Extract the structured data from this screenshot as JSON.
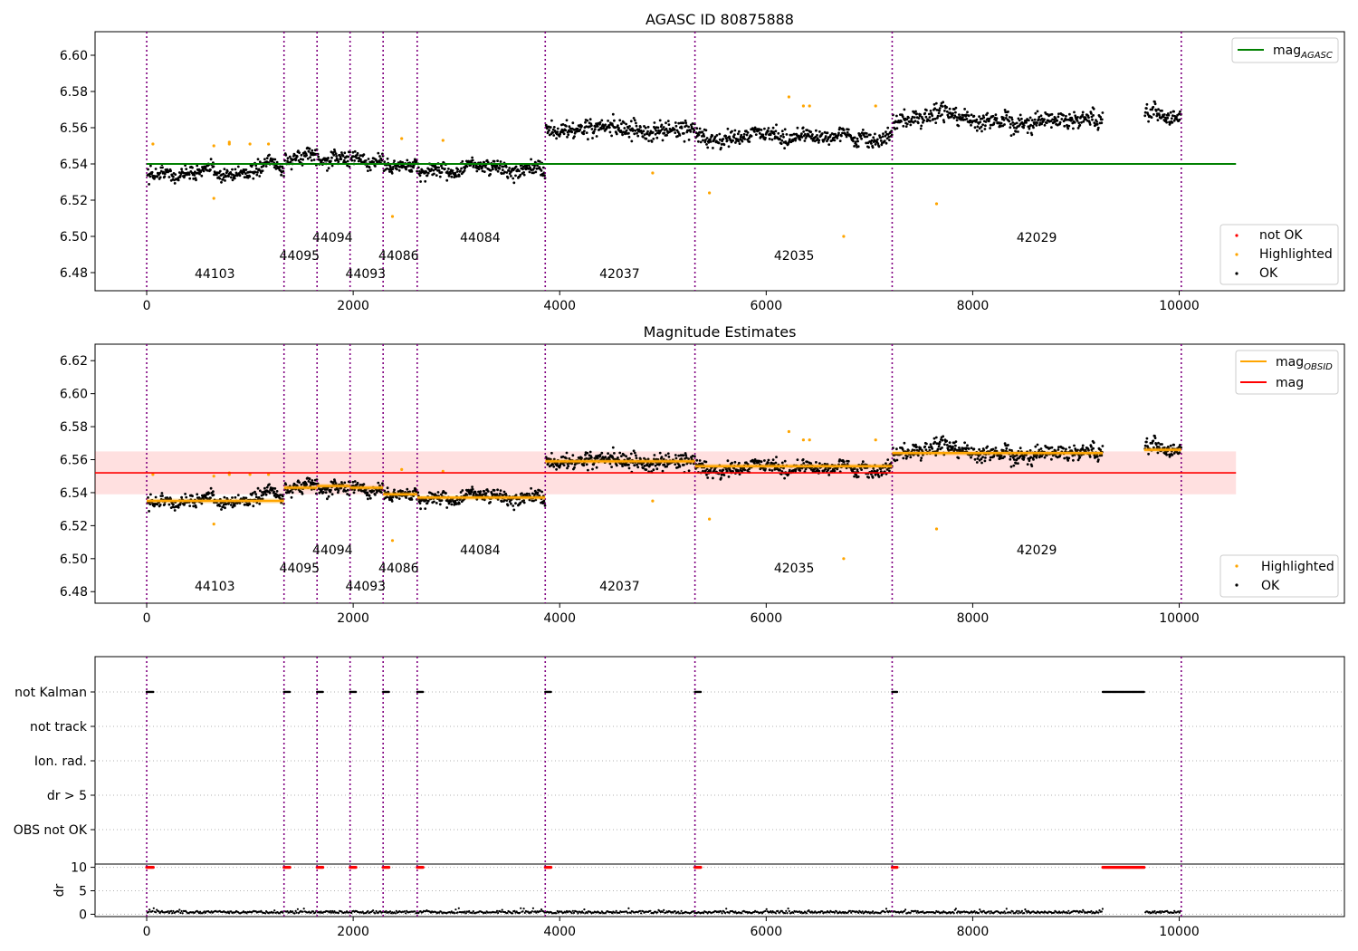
{
  "chart_data": [
    {
      "type": "scatter",
      "title": "AGASC ID 80875888",
      "xlim": [
        -500,
        11600
      ],
      "ylim": [
        6.47,
        6.613
      ],
      "x_ticks": [
        0,
        2000,
        4000,
        6000,
        8000,
        10000
      ],
      "y_ticks": [
        6.48,
        6.5,
        6.52,
        6.54,
        6.56,
        6.58,
        6.6
      ],
      "series": [
        {
          "name": "mag_AGASC",
          "kind": "line",
          "color": "#008000",
          "x": [
            0,
            10550
          ],
          "y": [
            6.54,
            6.54
          ]
        }
      ],
      "scatter_legend": [
        {
          "name": "not OK",
          "color": "#ff0000"
        },
        {
          "name": "Highlighted",
          "color": "#ffa500"
        },
        {
          "name": "OK",
          "color": "#000000"
        }
      ],
      "segments": [
        {
          "x_start": 0,
          "x_end": 1330,
          "level": 6.535,
          "amp": 0.005,
          "label": "44103",
          "label_x": 660,
          "label_row": 3
        },
        {
          "x_start": 1330,
          "x_end": 1650,
          "level": 6.543,
          "amp": 0.006,
          "label": "44095",
          "label_x": 1480,
          "label_row": 2
        },
        {
          "x_start": 1650,
          "x_end": 1970,
          "level": 6.544,
          "amp": 0.005,
          "label": "44094",
          "label_x": 1800,
          "label_row": 1
        },
        {
          "x_start": 1970,
          "x_end": 2290,
          "level": 6.543,
          "amp": 0.005,
          "label": "44093",
          "label_x": 2120,
          "label_row": 3
        },
        {
          "x_start": 2290,
          "x_end": 2620,
          "level": 6.539,
          "amp": 0.005,
          "label": "44086",
          "label_x": 2440,
          "label_row": 2
        },
        {
          "x_start": 2620,
          "x_end": 3860,
          "level": 6.537,
          "amp": 0.005,
          "label": "44084",
          "label_x": 3230,
          "label_row": 1
        },
        {
          "x_start": 3860,
          "x_end": 5310,
          "level": 6.559,
          "amp": 0.006,
          "label": "42037",
          "label_x": 4580,
          "label_row": 3
        },
        {
          "x_start": 5310,
          "x_end": 7220,
          "level": 6.556,
          "amp": 0.005,
          "label": "42035",
          "label_x": 6270,
          "label_row": 2
        },
        {
          "x_start": 7220,
          "x_end": 9260,
          "level": 6.564,
          "amp": 0.006,
          "label": "42029",
          "label_x": 8620,
          "label_row": 1
        },
        {
          "x_start": 9660,
          "x_end": 10020,
          "level": 6.566,
          "amp": 0.005,
          "label": "",
          "label_x": 0,
          "label_row": 0
        }
      ],
      "highlighted_points": [
        [
          60,
          6.551
        ],
        [
          650,
          6.521
        ],
        [
          650,
          6.55
        ],
        [
          800,
          6.552
        ],
        [
          800,
          6.551
        ],
        [
          1000,
          6.551
        ],
        [
          1180,
          6.551
        ],
        [
          2380,
          6.511
        ],
        [
          2470,
          6.554
        ],
        [
          2870,
          6.553
        ],
        [
          4900,
          6.535
        ],
        [
          5450,
          6.524
        ],
        [
          6220,
          6.577
        ],
        [
          6360,
          6.572
        ],
        [
          6420,
          6.572
        ],
        [
          6750,
          6.5
        ],
        [
          7060,
          6.572
        ],
        [
          7650,
          6.518
        ]
      ],
      "obsid_boundaries": [
        0,
        1330,
        1650,
        1970,
        2290,
        2620,
        3860,
        5310,
        7220,
        10020
      ]
    },
    {
      "type": "scatter",
      "title": "Magnitude Estimates",
      "xlim": [
        -500,
        11600
      ],
      "ylim": [
        6.473,
        6.63
      ],
      "x_ticks": [
        0,
        2000,
        4000,
        6000,
        8000,
        10000
      ],
      "y_ticks": [
        6.48,
        6.5,
        6.52,
        6.54,
        6.56,
        6.58,
        6.6,
        6.62
      ],
      "series": [
        {
          "name": "mag_OBSID",
          "kind": "step",
          "color": "#ffa500"
        },
        {
          "name": "mag",
          "kind": "line",
          "color": "#ff0000",
          "x": [
            -500,
            10550
          ],
          "y": [
            6.552,
            6.552
          ],
          "band": [
            6.539,
            6.565
          ]
        }
      ],
      "scatter_legend": [
        {
          "name": "Highlighted",
          "color": "#ffa500"
        },
        {
          "name": "OK",
          "color": "#000000"
        }
      ]
    },
    {
      "type": "scatter",
      "title": "",
      "category_rows": [
        "not Kalman",
        "not track",
        "Ion. rad.",
        "dr > 5",
        "OBS not OK"
      ],
      "not_kalman_x_ranges": [
        [
          0,
          70
        ],
        [
          1330,
          1390
        ],
        [
          1650,
          1710
        ],
        [
          1970,
          2030
        ],
        [
          2290,
          2350
        ],
        [
          2620,
          2680
        ],
        [
          3860,
          3920
        ],
        [
          5310,
          5370
        ],
        [
          7220,
          7270
        ],
        [
          9260,
          9660
        ]
      ],
      "dr": {
        "ylabel": "dr",
        "y_ticks": [
          0,
          5,
          10
        ],
        "ylim": [
          -0.5,
          10.5
        ],
        "high_value": 10,
        "high_x_ranges": [
          [
            0,
            70
          ],
          [
            1330,
            1390
          ],
          [
            1650,
            1710
          ],
          [
            1970,
            2030
          ],
          [
            2290,
            2350
          ],
          [
            2620,
            2680
          ],
          [
            3860,
            3920
          ],
          [
            5310,
            5370
          ],
          [
            7220,
            7270
          ],
          [
            9260,
            9660
          ]
        ]
      },
      "x_ticks": [
        0,
        2000,
        4000,
        6000,
        8000,
        10000
      ],
      "xlim": [
        -500,
        11600
      ]
    }
  ]
}
